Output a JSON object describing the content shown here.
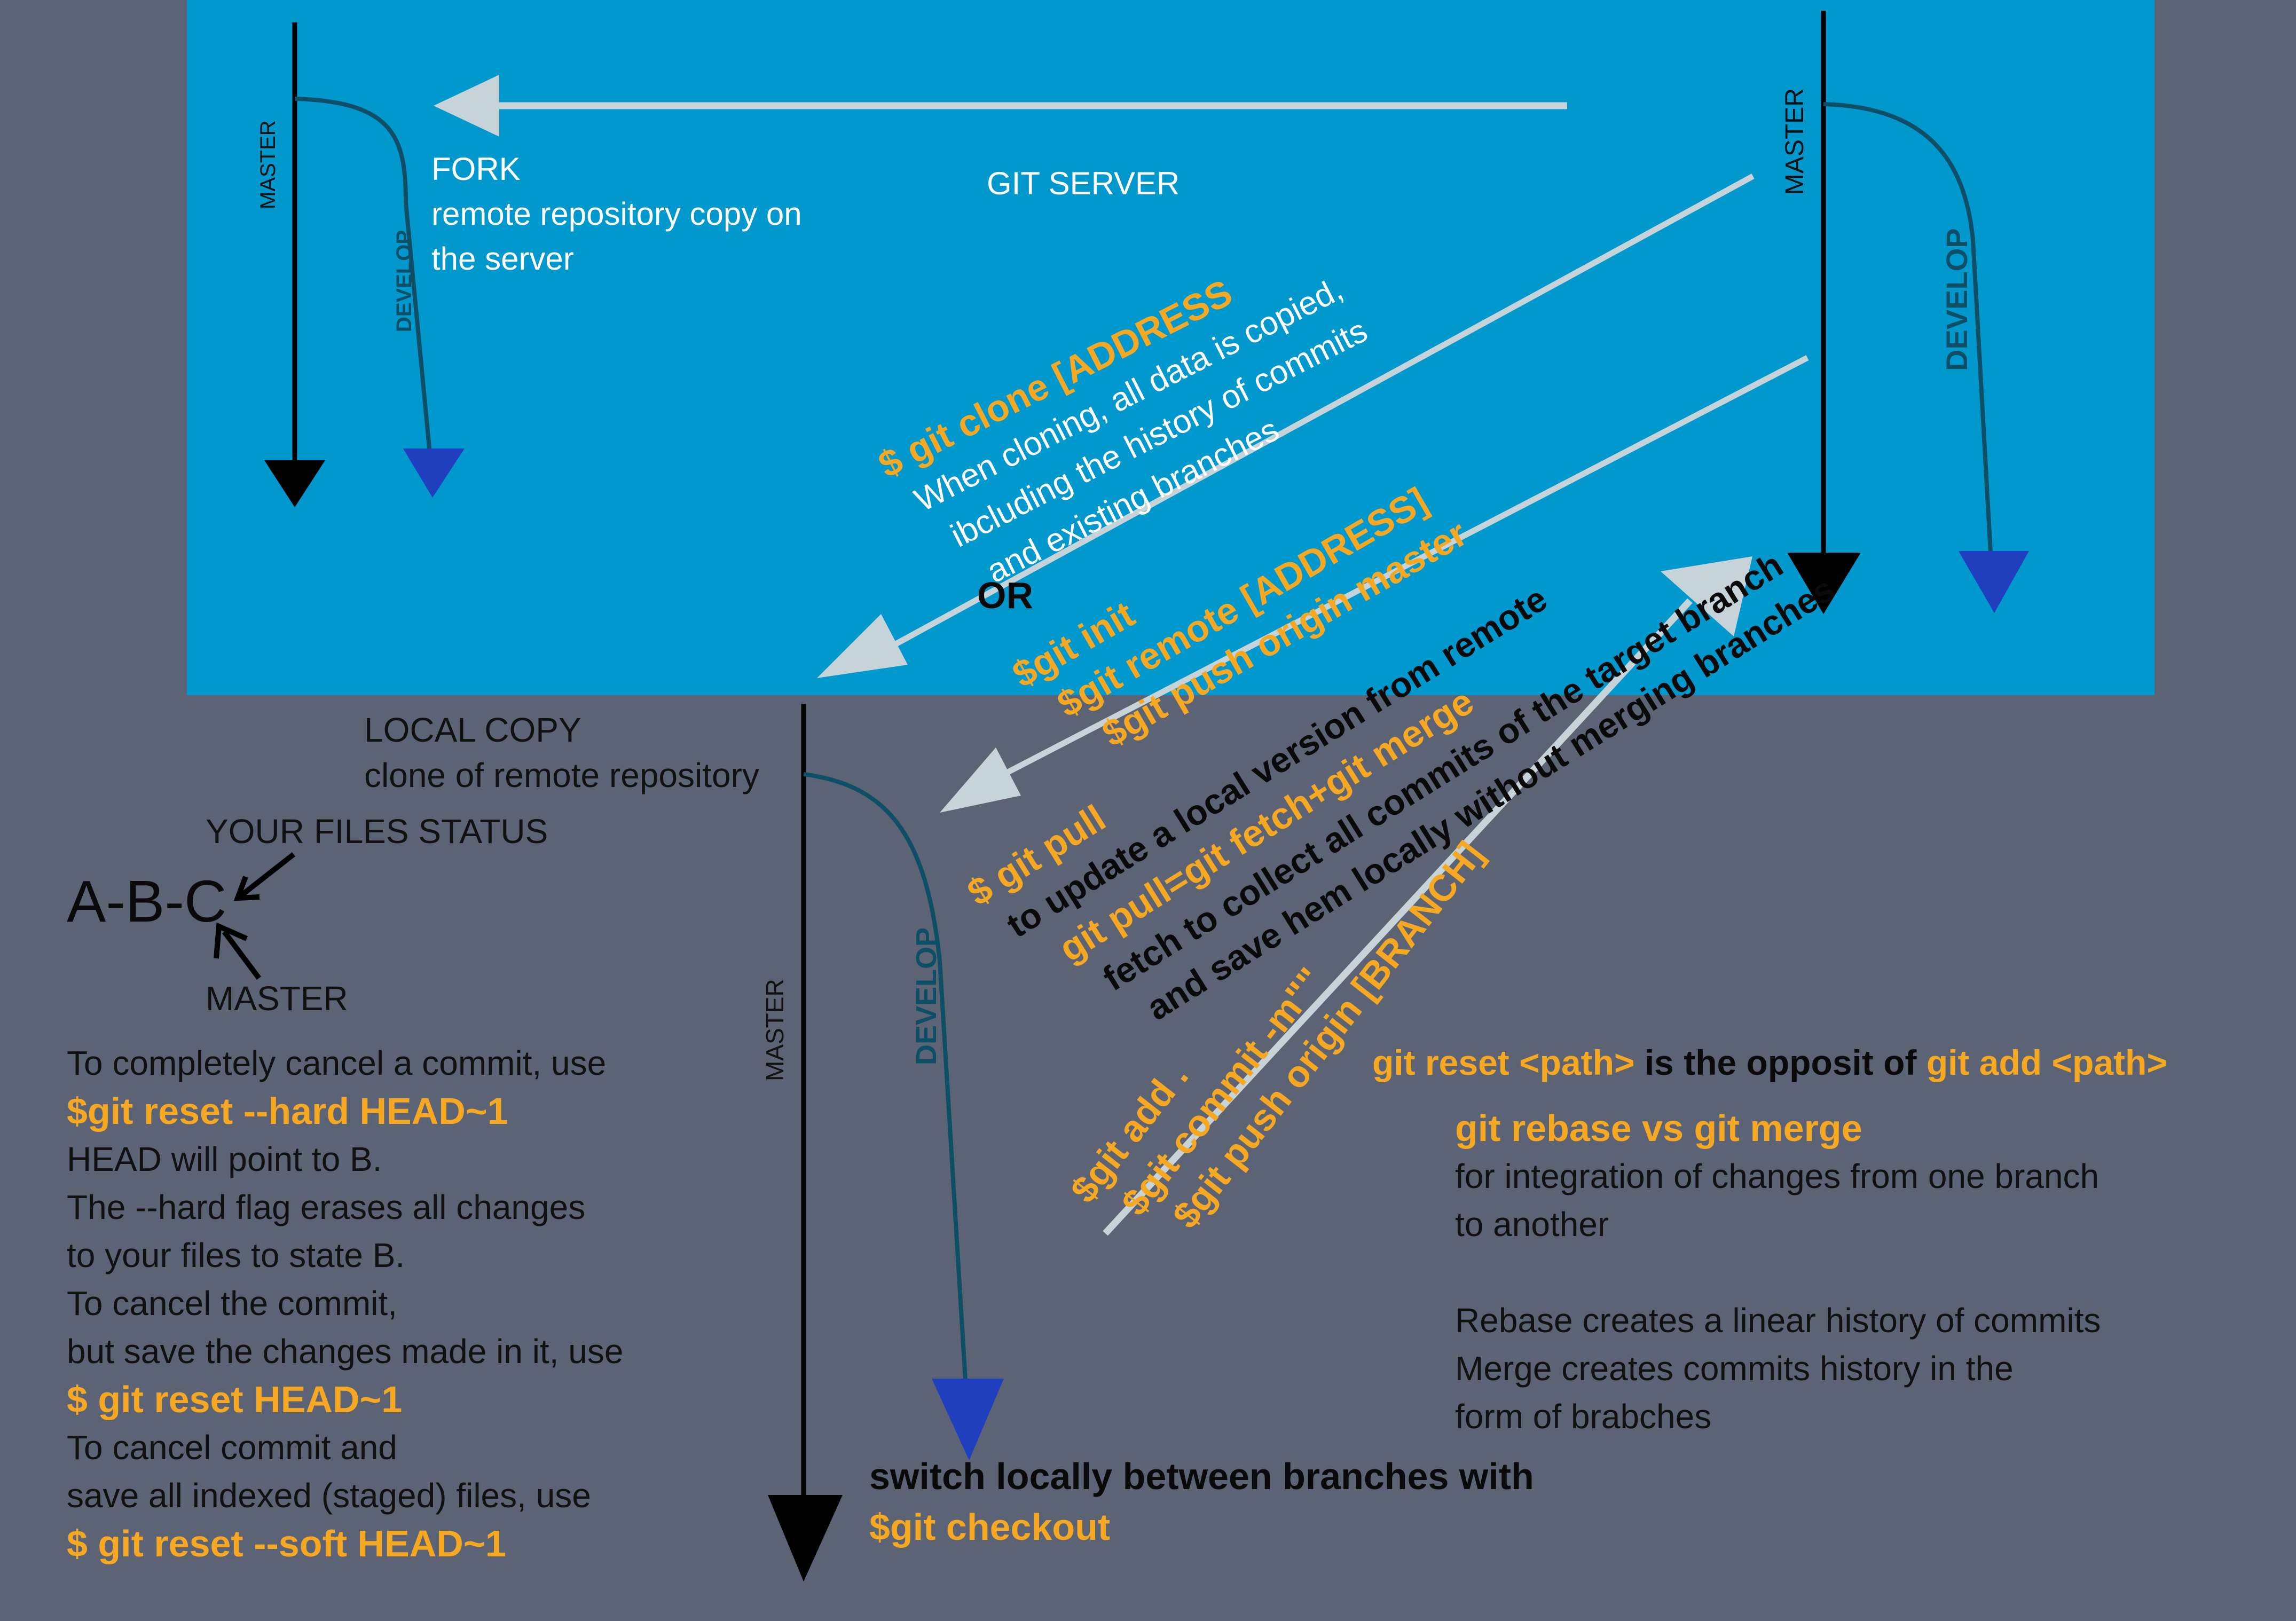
{
  "server": {
    "title": "GIT SERVER",
    "fork_title": "FORK",
    "fork_desc": [
      "remote repository copy on",
      "the server"
    ]
  },
  "branches": {
    "master": "MASTER",
    "develop": "DEVELOP"
  },
  "clone": {
    "command": "$ git clone [ADDRESS",
    "desc": [
      "When cloning, all data is copied,",
      "ibcluding the history of commits",
      "and existing branches"
    ],
    "or": "OR",
    "alt_commands": [
      "$git init",
      "$git remote [ADDRESS]",
      "$git push origin master"
    ]
  },
  "pull": {
    "command": "$ git pull",
    "desc": "to update a local version from remote",
    "equation": "git pull=git fetch+git merge",
    "fetch_desc": [
      "fetch to collect all commits of the target branch",
      "and save hem locally without merging branches"
    ]
  },
  "push": {
    "commands": [
      "$git add .",
      "$git commit -m\"\"",
      "$git push origin [BRANCH]"
    ]
  },
  "local": {
    "title": "LOCAL COPY",
    "desc": "clone of remote repository"
  },
  "status": {
    "label": "YOUR FILES STATUS",
    "commits": "A-B-C",
    "master": "MASTER"
  },
  "reset": {
    "lines": [
      {
        "text": "To completely cancel a commit, use",
        "cmd": false
      },
      {
        "text": "$git reset --hard HEAD~1",
        "cmd": true
      },
      {
        "text": "HEAD will point to B.",
        "cmd": false
      },
      {
        "text": "The --hard flag erases all changes",
        "cmd": false
      },
      {
        "text": "to your files to state B.",
        "cmd": false
      },
      {
        "text": "To cancel the commit,",
        "cmd": false
      },
      {
        "text": "but save the changes made in it, use",
        "cmd": false
      },
      {
        "text": "$ git reset HEAD~1",
        "cmd": true
      },
      {
        "text": "To cancel commit and",
        "cmd": false
      },
      {
        "text": "save all indexed (staged) files, use",
        "cmd": false
      },
      {
        "text": "$ git reset --soft HEAD~1",
        "cmd": true
      }
    ]
  },
  "reset_path": {
    "cmd1": "git reset <path>",
    "middle": " is the opposit of ",
    "cmd2": "git add <path>"
  },
  "rebase": {
    "title": "git rebase vs git merge",
    "lines": [
      "for integration of changes from one branch",
      "to another",
      "",
      "Rebase creates a linear history of commits",
      "Merge creates commits history in the",
      "form of brabches"
    ]
  },
  "checkout": {
    "text": "switch locally between branches with",
    "command": "$git checkout"
  },
  "colors": {
    "server_bg": "#0098cd",
    "page_bg": "#5b6374",
    "command": "#f7a823",
    "arrow": "#c6d3d8",
    "develop_line": "#0d4f66",
    "develop_head": "#1f3fbf"
  }
}
